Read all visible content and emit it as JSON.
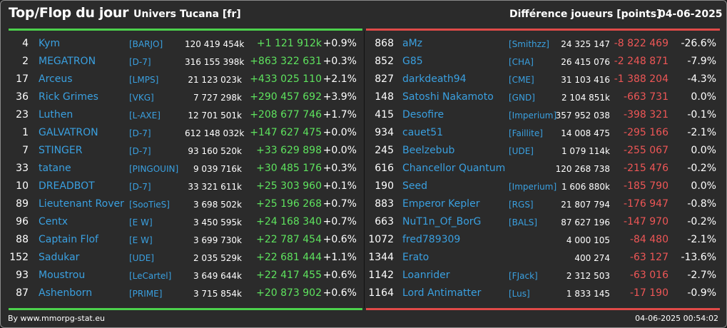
{
  "header": {
    "title": "Top/Flop du jour",
    "universe": "Univers Tucana [fr]",
    "difference_label": "Différence joueurs [points]",
    "date": "04-06-2025"
  },
  "colors": {
    "top": "#4cd14c",
    "flop": "#e04a48",
    "link": "#3aa0e0"
  },
  "top": [
    {
      "rank": "4",
      "name": "Kym",
      "guild": "[BARJO]",
      "points": "120 419 454k",
      "delta": "+1 121 912k",
      "pct": "+0.9%"
    },
    {
      "rank": "2",
      "name": "MEGATRON",
      "guild": "[D-7]",
      "points": "316 155 398k",
      "delta": "+863 322 631",
      "pct": "+0.3%"
    },
    {
      "rank": "17",
      "name": "Arceus",
      "guild": "[LMPS]",
      "points": "21 123 023k",
      "delta": "+433 025 110",
      "pct": "+2.1%"
    },
    {
      "rank": "36",
      "name": "Rick Grimes",
      "guild": "[VKG]",
      "points": "7 727 298k",
      "delta": "+290 457 692",
      "pct": "+3.9%"
    },
    {
      "rank": "23",
      "name": "Luthen",
      "guild": "[L-AXE]",
      "points": "12 701 501k",
      "delta": "+208 677 746",
      "pct": "+1.7%"
    },
    {
      "rank": "1",
      "name": "GALVATRON",
      "guild": "[D-7]",
      "points": "612 148 032k",
      "delta": "+147 627 475",
      "pct": "+0.0%"
    },
    {
      "rank": "7",
      "name": "STINGER",
      "guild": "[D-7]",
      "points": "93 160 520k",
      "delta": "+33 629 898",
      "pct": "+0.0%"
    },
    {
      "rank": "33",
      "name": "tatane",
      "guild": "[PINGOUIN]",
      "points": "9 039 716k",
      "delta": "+30 485 176",
      "pct": "+0.3%"
    },
    {
      "rank": "10",
      "name": "DREADBOT",
      "guild": "[D-7]",
      "points": "33 321 611k",
      "delta": "+25 303 960",
      "pct": "+0.1%"
    },
    {
      "rank": "89",
      "name": "Lieutenant Rover",
      "guild": "[SooTieS]",
      "points": "3 698 502k",
      "delta": "+25 196 268",
      "pct": "+0.7%"
    },
    {
      "rank": "96",
      "name": "Centx",
      "guild": "[E W]",
      "points": "3 450 595k",
      "delta": "+24 168 340",
      "pct": "+0.7%"
    },
    {
      "rank": "88",
      "name": "Captain Flof",
      "guild": "[E W]",
      "points": "3 699 730k",
      "delta": "+22 787 454",
      "pct": "+0.6%"
    },
    {
      "rank": "152",
      "name": "Sadukar",
      "guild": "[UDE]",
      "points": "2 035 529k",
      "delta": "+22 681 444",
      "pct": "+1.1%"
    },
    {
      "rank": "93",
      "name": "Moustrou",
      "guild": "[LeCartel]",
      "points": "3 649 644k",
      "delta": "+22 417 455",
      "pct": "+0.6%"
    },
    {
      "rank": "87",
      "name": "Ashenborn",
      "guild": "[PRIME]",
      "points": "3 715 854k",
      "delta": "+20 873 902",
      "pct": "+0.6%"
    }
  ],
  "flop": [
    {
      "rank": "868",
      "name": "aMz",
      "guild": "[Smithzz]",
      "points": "24 325 147",
      "delta": "-8 822 469",
      "pct": "-26.6%"
    },
    {
      "rank": "852",
      "name": "G85",
      "guild": "[CHA]",
      "points": "26 415 076",
      "delta": "-2 248 871",
      "pct": "-7.9%"
    },
    {
      "rank": "827",
      "name": "darkdeath94",
      "guild": "[CME]",
      "points": "31 103 416",
      "delta": "-1 388 204",
      "pct": "-4.3%"
    },
    {
      "rank": "148",
      "name": "Satoshi Nakamoto",
      "guild": "[GND]",
      "points": "2 104 851k",
      "delta": "-663 731",
      "pct": "0.0%"
    },
    {
      "rank": "415",
      "name": "Desofire",
      "guild": "[Imperium]",
      "points": "357 952 038",
      "delta": "-398 321",
      "pct": "-0.1%"
    },
    {
      "rank": "934",
      "name": "cauet51",
      "guild": "[Faillite]",
      "points": "14 008 475",
      "delta": "-295 166",
      "pct": "-2.1%"
    },
    {
      "rank": "245",
      "name": "Beelzebub",
      "guild": "[UDE]",
      "points": "1 079 114k",
      "delta": "-255 067",
      "pct": "0.0%"
    },
    {
      "rank": "616",
      "name": "Chancellor Quantum",
      "guild": "",
      "points": "120 268 738",
      "delta": "-215 476",
      "pct": "-0.2%"
    },
    {
      "rank": "190",
      "name": "Seed",
      "guild": "[Imperium]",
      "points": "1 606 880k",
      "delta": "-185 790",
      "pct": "0.0%"
    },
    {
      "rank": "883",
      "name": "Emperor Kepler",
      "guild": "[RGS]",
      "points": "21 807 794",
      "delta": "-176 947",
      "pct": "-0.8%"
    },
    {
      "rank": "663",
      "name": "NuT1n_Of_BorG",
      "guild": "[BALS]",
      "points": "87 627 196",
      "delta": "-147 970",
      "pct": "-0.2%"
    },
    {
      "rank": "1072",
      "name": "fred789309",
      "guild": "",
      "points": "4 000 105",
      "delta": "-84 480",
      "pct": "-2.1%"
    },
    {
      "rank": "1344",
      "name": "Erato",
      "guild": "",
      "points": "400 274",
      "delta": "-63 127",
      "pct": "-13.6%"
    },
    {
      "rank": "1142",
      "name": "Loanrider",
      "guild": "[FJack]",
      "points": "2 312 503",
      "delta": "-63 016",
      "pct": "-2.7%"
    },
    {
      "rank": "1164",
      "name": "Lord Antimatter",
      "guild": "[Lus]",
      "points": "1 833 145",
      "delta": "-17 190",
      "pct": "-0.9%"
    }
  ],
  "footer": {
    "credit": "By www.mmorpg-stat.eu",
    "timestamp": "04-06-2025 00:54:02"
  }
}
